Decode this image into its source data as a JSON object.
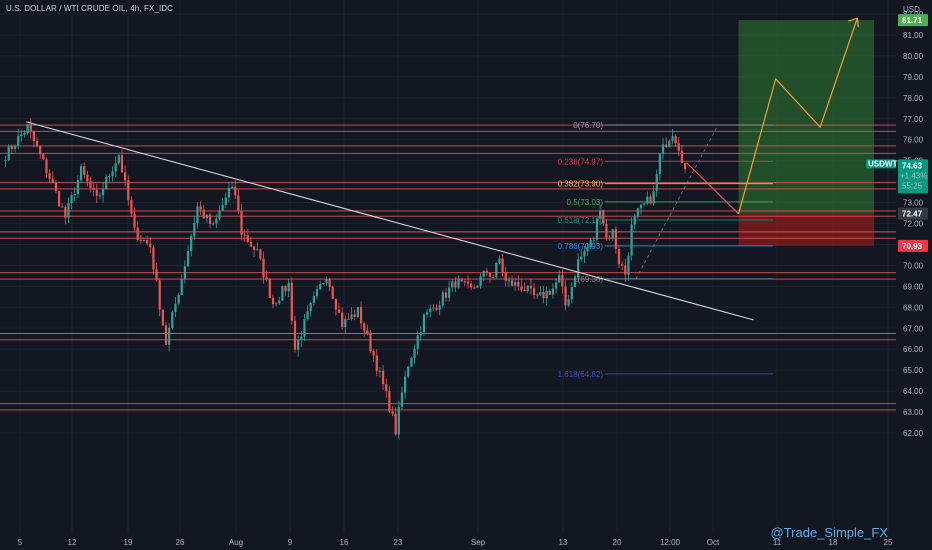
{
  "header": {
    "symbol_title": "U.S. DOLLAR / WTI CRUDE OIL, 4h, FX_IDC"
  },
  "watermark": "@Trade_Simple_FX",
  "colors": {
    "background": "#131722",
    "up": "#26a69a",
    "down": "#ef5350",
    "sr_line": "#d9534f",
    "trendline": "#d1d4dc",
    "profit_zone": "#2e7d32",
    "loss_zone": "#b71c1c",
    "projection": "#f0a030"
  },
  "chart_data": {
    "type": "candlestick",
    "title": "U.S. DOLLAR / WTI CRUDE OIL, 4h, FX_IDC",
    "yunit": "USD",
    "ylim": [
      61.8,
      82.4
    ],
    "y_ticks": [
      62,
      63,
      64,
      65,
      66,
      67,
      68,
      69,
      70,
      71,
      72,
      73,
      74,
      75,
      76,
      77,
      78,
      79,
      80,
      81,
      82
    ],
    "x_ticks": [
      "5",
      "12",
      "19",
      "26",
      "Aug",
      "9",
      "16",
      "23",
      "Sep",
      "13",
      "20",
      "12:00",
      "Oct",
      "11",
      "18",
      "25"
    ],
    "price_path": [
      [
        0,
        75.3
      ],
      [
        3,
        76.6
      ],
      [
        6,
        74.2
      ],
      [
        8,
        72.3
      ],
      [
        10,
        74.5
      ],
      [
        12,
        73.1
      ],
      [
        15,
        75.3
      ],
      [
        17,
        71.6
      ],
      [
        19,
        70.9
      ],
      [
        21,
        66.3
      ],
      [
        23,
        69.4
      ],
      [
        25,
        72.8
      ],
      [
        27,
        71.8
      ],
      [
        29,
        73.6
      ],
      [
        30,
        73.4
      ],
      [
        31,
        71.6
      ],
      [
        33,
        70.6
      ],
      [
        35,
        68.2
      ],
      [
        37,
        69.1
      ],
      [
        38,
        66.0
      ],
      [
        40,
        68.0
      ],
      [
        42,
        69.6
      ],
      [
        44,
        67.2
      ],
      [
        46,
        67.8
      ],
      [
        48,
        65.7
      ],
      [
        50,
        63.3
      ],
      [
        51,
        62.1
      ],
      [
        52,
        63.9
      ],
      [
        53,
        65.3
      ],
      [
        55,
        67.5
      ],
      [
        57,
        68.3
      ],
      [
        59,
        69.2
      ],
      [
        61,
        68.8
      ],
      [
        63,
        69.7
      ],
      [
        64,
        69.5
      ],
      [
        65,
        70.3
      ],
      [
        66,
        69.2
      ],
      [
        68,
        69.0
      ],
      [
        70,
        68.4
      ],
      [
        72,
        68.9
      ],
      [
        73,
        69.4
      ],
      [
        74,
        68.1
      ],
      [
        75,
        69.0
      ],
      [
        76,
        70.2
      ],
      [
        78,
        71.3
      ],
      [
        79,
        72.9
      ],
      [
        80,
        71.3
      ],
      [
        81,
        71.6
      ],
      [
        82,
        70.2
      ],
      [
        83,
        69.6
      ],
      [
        84,
        71.8
      ],
      [
        85,
        72.5
      ],
      [
        87,
        73.4
      ],
      [
        88,
        75.2
      ],
      [
        89,
        75.9
      ],
      [
        90,
        76.4
      ],
      [
        91,
        75.7
      ],
      [
        92,
        74.6
      ]
    ],
    "series": [
      {
        "name": "USDWTI",
        "last": 74.63,
        "change": "+1.43%",
        "countdown": "55:25"
      }
    ],
    "horizontal_levels": [
      76.7,
      76.4,
      75.7,
      75.35,
      73.95,
      73.65,
      72.6,
      72.35,
      71.6,
      71.3,
      69.65,
      69.35,
      66.75,
      66.45,
      63.4,
      63.1
    ],
    "trendline": {
      "from": [
        3,
        76.85
      ],
      "to": [
        101,
        67.4
      ]
    },
    "fibonacci": [
      {
        "label": "0(76.70)",
        "value": 76.7,
        "color": "#9598a1"
      },
      {
        "label": "0.236(74.97)",
        "value": 74.97,
        "color": "#f23645"
      },
      {
        "label": "0.382(73.90)",
        "value": 73.9,
        "color": "#ffb74d"
      },
      {
        "label": "0.5(73.03)",
        "value": 73.03,
        "color": "#4caf50"
      },
      {
        "label": "0.618(72.17)",
        "value": 72.17,
        "color": "#089981"
      },
      {
        "label": "0.786(70.93)",
        "value": 70.93,
        "color": "#2196f3"
      },
      {
        "label": "1(69.36)",
        "value": 69.36,
        "color": "#787b86"
      },
      {
        "label": "1.618(64.82)",
        "value": 64.82,
        "color": "#3f51b5"
      }
    ],
    "position": {
      "entry": 72.47,
      "stop": 70.93,
      "target": 81.71,
      "start_x": 99,
      "end_x": 121
    },
    "projection_path": [
      [
        99,
        72.47
      ],
      [
        104,
        78.9
      ],
      [
        110,
        76.6
      ],
      [
        115,
        81.8
      ]
    ],
    "price_labels": [
      {
        "text": "81.71",
        "value": 81.71,
        "color": "#4caf50"
      },
      {
        "text": "72.47",
        "value": 72.47,
        "color": "#363a45"
      },
      {
        "text": "70.93",
        "value": 70.93,
        "color": "#f23645"
      }
    ]
  }
}
